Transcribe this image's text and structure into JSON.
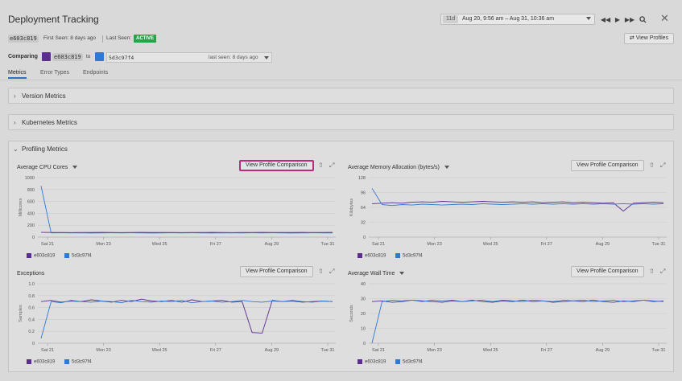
{
  "header": {
    "title": "Deployment Tracking",
    "range_badge": "11d",
    "range_text": "Aug 20, 9:56 am – Aug 31, 10:36 am"
  },
  "deployment": {
    "version": "e603c819",
    "first_seen": "First Seen: 8 days ago",
    "last_seen_label": "Last Seen:",
    "status": "ACTIVE",
    "view_profiles": "View Profiles"
  },
  "comparing": {
    "label": "Comparing",
    "base_version": "e603c819",
    "to": "to",
    "target_version": "5d3c97f4",
    "target_seen": "last seen: 8 days ago"
  },
  "tabs": [
    {
      "label": "Metrics",
      "active": true
    },
    {
      "label": "Error Types",
      "active": false
    },
    {
      "label": "Endpoints",
      "active": false
    }
  ],
  "sections": {
    "version_metrics": "Version Metrics",
    "kubernetes_metrics": "Kubernetes Metrics",
    "profiling_metrics": "Profiling Metrics"
  },
  "colors": {
    "series_a": "#5b2d8e",
    "series_b": "#2f78d4",
    "active": "#27a44a",
    "highlight": "#c0287c"
  },
  "chart_data": [
    {
      "type": "line",
      "title": "Average CPU Cores",
      "button": "View Profile Comparison",
      "ylabel": "Millicores",
      "yticks": [
        "0",
        "200",
        "400",
        "600",
        "800",
        "1000"
      ],
      "ylim": [
        0,
        1000
      ],
      "xticks": [
        "Sat 21",
        "Mon 23",
        "Wed 25",
        "Fri 27",
        "Aug 29",
        "Tue 31"
      ],
      "series": [
        {
          "name": "e603c819",
          "values": [
            80,
            78,
            79,
            77,
            78,
            79,
            80,
            78,
            77,
            79,
            80,
            78,
            79,
            78,
            77,
            79,
            78,
            80,
            79,
            77,
            78,
            79,
            80,
            78,
            79,
            78,
            80,
            79,
            78,
            80
          ]
        },
        {
          "name": "5d3c97f4",
          "values": [
            860,
            70,
            72,
            70,
            71,
            69,
            70,
            72,
            70,
            71,
            70,
            69,
            70,
            71,
            70,
            72,
            70,
            69,
            71,
            70,
            70,
            71,
            70,
            72,
            70,
            69,
            70,
            71,
            70,
            70
          ]
        }
      ]
    },
    {
      "type": "line",
      "title": "Average Memory Allocation (bytes/s)",
      "button": "View Profile Comparison",
      "ylabel": "Kilobytes",
      "yticks": [
        "0",
        "32",
        "64",
        "96",
        "128"
      ],
      "ylim": [
        0,
        128
      ],
      "xticks": [
        "Sat 21",
        "Mon 23",
        "Wed 25",
        "Fri 27",
        "Aug 29",
        "Tue 31"
      ],
      "series": [
        {
          "name": "e603c819",
          "values": [
            72,
            73,
            74,
            73,
            75,
            76,
            75,
            77,
            76,
            75,
            76,
            77,
            76,
            75,
            76,
            75,
            76,
            74,
            75,
            76,
            74,
            75,
            74,
            73,
            74,
            56,
            73,
            74,
            75,
            74
          ]
        },
        {
          "name": "5d3c97f4",
          "values": [
            105,
            70,
            68,
            70,
            69,
            71,
            70,
            69,
            70,
            71,
            70,
            72,
            71,
            70,
            71,
            72,
            71,
            72,
            71,
            72,
            71,
            72,
            71,
            72,
            71,
            72,
            71,
            72,
            71,
            72
          ]
        }
      ]
    },
    {
      "type": "line",
      "title": "Exceptions",
      "button": "View Profile Comparison",
      "ylabel": "Samples",
      "yticks": [
        "0",
        "0.2",
        "0.4",
        "0.6",
        "0.8",
        "1.0"
      ],
      "ylim": [
        0,
        1.0
      ],
      "xticks": [
        "Sat 21",
        "Mon 23",
        "Wed 25",
        "Fri 27",
        "Aug 29",
        "Tue 31"
      ],
      "series": [
        {
          "name": "e603c819",
          "values": [
            0.7,
            0.72,
            0.69,
            0.71,
            0.7,
            0.73,
            0.71,
            0.69,
            0.72,
            0.7,
            0.74,
            0.71,
            0.7,
            0.72,
            0.69,
            0.73,
            0.7,
            0.71,
            0.72,
            0.69,
            0.7,
            0.18,
            0.17,
            0.72,
            0.7,
            0.71,
            0.69,
            0.7,
            0.71,
            0.7
          ]
        },
        {
          "name": "5d3c97f4",
          "values": [
            0.08,
            0.7,
            0.68,
            0.72,
            0.7,
            0.69,
            0.71,
            0.7,
            0.68,
            0.72,
            0.7,
            0.69,
            0.71,
            0.7,
            0.72,
            0.68,
            0.7,
            0.71,
            0.69,
            0.7,
            0.72,
            0.7,
            0.69,
            0.71,
            0.7,
            0.72,
            0.7,
            0.69,
            0.71,
            0.7
          ]
        }
      ]
    },
    {
      "type": "line",
      "title": "Average Wall Time",
      "button": "View Profile Comparison",
      "ylabel": "Seconds",
      "yticks": [
        "0",
        "10",
        "20",
        "30",
        "40"
      ],
      "ylim": [
        0,
        40
      ],
      "xticks": [
        "Sat 21",
        "Mon 23",
        "Wed 25",
        "Fri 27",
        "Aug 29",
        "Tue 31"
      ],
      "series": [
        {
          "name": "e603c819",
          "values": [
            28,
            28.5,
            27.5,
            28,
            29,
            28.5,
            28,
            27.5,
            28.5,
            28,
            29,
            28,
            27.5,
            28.5,
            28,
            29,
            28,
            28.5,
            27.5,
            28,
            28.5,
            28,
            29,
            28,
            27.5,
            28.5,
            28,
            29,
            28,
            28.5
          ]
        },
        {
          "name": "5d3c97f4",
          "values": [
            0,
            28,
            29,
            28.5,
            29,
            28,
            29,
            28.5,
            29,
            28,
            28.5,
            29,
            28,
            29,
            28.5,
            28,
            29,
            28.5,
            28,
            29,
            28.5,
            29,
            28,
            28.5,
            29,
            28,
            28.5,
            29,
            28.5,
            28
          ]
        }
      ]
    }
  ]
}
